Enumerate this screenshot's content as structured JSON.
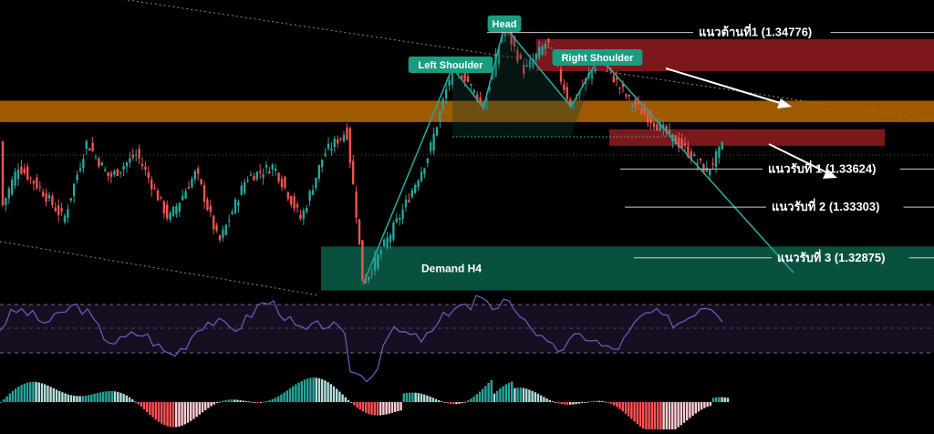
{
  "chart_data": [
    {
      "type": "candlestick",
      "title": "",
      "xlabel": "",
      "ylabel": "",
      "ylim": [
        1.3255,
        1.3505
      ],
      "grid": false,
      "colors": {
        "up": "#26a69a",
        "down": "#ef5350",
        "background": "#000000",
        "neckline": "#26a69a"
      },
      "candles": [],
      "pattern": {
        "labels": {
          "left_shoulder": "Left Shoulder",
          "head": "Head",
          "right_shoulder": "Right Shoulder"
        },
        "points": {
          "start": [
            398,
            1.3265
          ],
          "left_shoulder": [
            496,
            1.3448
          ],
          "neck_left": [
            530,
            1.3414
          ],
          "head": [
            553,
            1.3483
          ],
          "neck_right": [
            626,
            1.3415
          ],
          "right_shoulder": [
            657,
            1.3457
          ],
          "end": [
            870,
            1.3275
          ]
        }
      },
      "zones": [
        {
          "name": "resistance-zone-upper",
          "label": "",
          "x_from": 588,
          "x_to": 1024,
          "y_from": 1.3445,
          "y_to": 1.3472,
          "color": "#8b1a1f"
        },
        {
          "name": "resistance-zone-lower",
          "label": "",
          "x_from": 668,
          "x_to": 970,
          "y_from": 1.3382,
          "y_to": 1.3396,
          "color": "#8b1a1f"
        },
        {
          "name": "orange-zone",
          "label": "",
          "x_from": 0,
          "x_to": 1024,
          "y_from": 1.3402,
          "y_to": 1.342,
          "color": "#b86b00"
        },
        {
          "name": "demand-zone",
          "label": "Demand H4",
          "x_from": 352,
          "x_to": 1024,
          "y_from": 1.326,
          "y_to": 1.3297,
          "color": "#0a5a46"
        }
      ],
      "levels": [
        {
          "name": "resistance-1",
          "label": "แนวต้านที่1 (1.34776)",
          "price": 1.34776,
          "x_from": 534,
          "x_to": 1024
        },
        {
          "name": "support-1",
          "label": "แนวรับที่ 1 (1.33624)",
          "price": 1.33624,
          "x_from": 680,
          "x_to": 1024
        },
        {
          "name": "support-2",
          "label": "แนวรับที่ 2 (1.33303)",
          "price": 1.33303,
          "x_from": 685,
          "x_to": 1024
        },
        {
          "name": "support-3",
          "label": "แนวรับที่ 3 (1.32875)",
          "price": 1.32875,
          "x_from": 695,
          "x_to": 1024
        }
      ]
    },
    {
      "type": "line",
      "title": "",
      "xlabel": "",
      "ylabel": "",
      "ylim": [
        0,
        100
      ],
      "color": "#7e57c2",
      "bands": [
        70,
        50,
        30
      ],
      "series": []
    },
    {
      "type": "bar",
      "title": "",
      "xlabel": "",
      "ylabel": "",
      "colors": {
        "up_strong": "#26a69a",
        "up_weak": "#b2dfdb",
        "down_strong": "#ff5252",
        "down_weak": "#ffcdd2"
      },
      "values": []
    }
  ]
}
